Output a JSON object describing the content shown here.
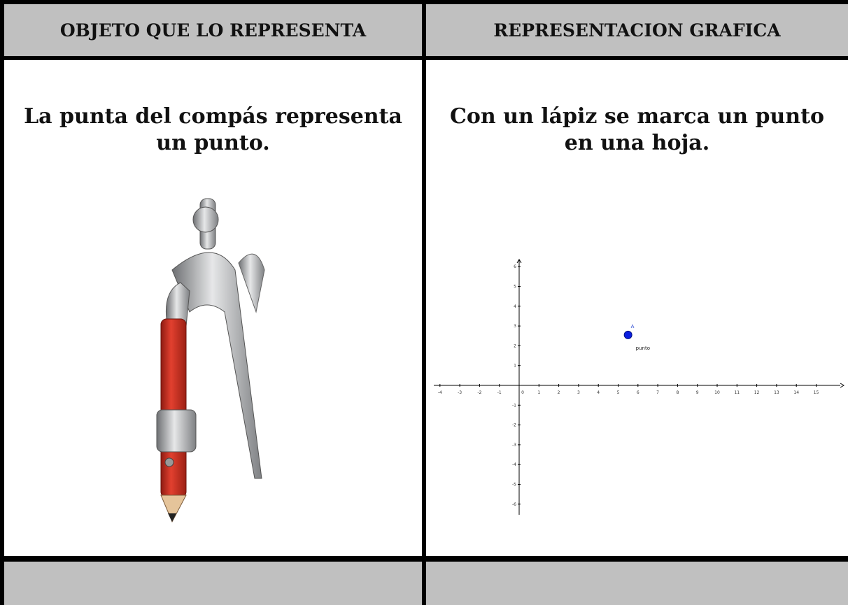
{
  "table": {
    "header": [
      "OBJETO QUE LO REPRESENTA",
      "REPRESENTACION GRAFICA"
    ],
    "rows": [
      [
        "La punta del compás representa un punto.",
        "Con un lápiz se marca un punto en una hoja."
      ]
    ]
  },
  "graph": {
    "xticks": [
      -4,
      -3,
      -2,
      -1,
      0,
      1,
      2,
      3,
      4,
      5,
      6,
      7,
      8,
      9,
      10,
      11,
      12,
      13,
      14,
      15
    ],
    "yticks": [
      -6,
      -5,
      -4,
      -3,
      -2,
      -1,
      1,
      2,
      3,
      4,
      5,
      6
    ],
    "point": {
      "label": "A",
      "x": 5.5,
      "y": 2.55
    },
    "annotation": "punto"
  }
}
